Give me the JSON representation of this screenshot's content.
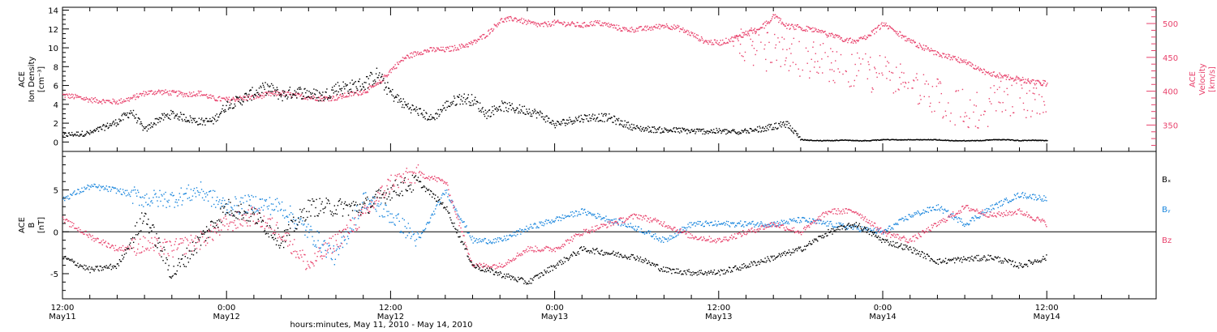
{
  "colors": {
    "density": "#000000",
    "velocity": "#e8426c",
    "bx": "#000000",
    "by": "#1a86dd",
    "bz": "#e8426c"
  },
  "chart_data": [
    {
      "type": "scatter",
      "panel": "top",
      "left_ylabel_lines": [
        "ACE",
        "Ion Density",
        "[cm⁻³]"
      ],
      "right_ylabel_lines": [
        "ACE",
        "Velocity",
        "[km/s]"
      ],
      "left_ylim": [
        -1,
        14.3
      ],
      "left_yticks": [
        0,
        2,
        4,
        6,
        8,
        10,
        12,
        14
      ],
      "right_ylim": [
        311,
        524
      ],
      "right_yticks": [
        350,
        400,
        450,
        500
      ],
      "series": [
        {
          "key": "density",
          "axis": "left",
          "x": [
            0,
            1,
            2,
            3,
            4,
            5,
            6,
            7,
            8,
            9,
            10,
            11,
            12,
            13,
            14,
            15,
            16,
            17,
            18,
            19,
            20,
            21,
            22,
            23,
            24,
            25,
            26,
            27,
            28,
            29,
            30,
            31,
            32,
            33,
            34,
            35,
            36,
            37,
            38,
            39,
            40,
            41,
            42,
            43,
            44,
            45,
            46,
            47,
            48,
            49,
            50,
            51,
            52,
            53,
            54,
            55,
            56,
            57,
            58,
            59,
            60,
            61,
            62,
            63,
            64,
            65,
            66,
            67,
            68,
            69,
            70,
            71,
            72
          ],
          "y": [
            0.8,
            0.9,
            1.0,
            1.6,
            2.2,
            3.3,
            1.3,
            2.5,
            3.0,
            2.6,
            2.2,
            2.3,
            4.0,
            4.5,
            5.3,
            5.8,
            5.0,
            5.4,
            5.2,
            4.9,
            5.8,
            5.9,
            6.2,
            7.2,
            5.2,
            4.0,
            3.3,
            2.5,
            3.9,
            4.7,
            4.5,
            3.0,
            3.9,
            3.6,
            3.4,
            2.9,
            1.9,
            2.3,
            2.6,
            2.7,
            2.6,
            2.0,
            1.5,
            1.4,
            1.3,
            1.3,
            1.2,
            1.2,
            1.2,
            1.1,
            1.3,
            1.4,
            1.7,
            2.0,
            0.3,
            0.2,
            0.2,
            0.25,
            0.2,
            0.2,
            0.3,
            0.3,
            0.3,
            0.3,
            0.3,
            0.2,
            0.2,
            0.2,
            0.3,
            0.3,
            0.2,
            0.25,
            0.2
          ]
        },
        {
          "key": "velocity",
          "axis": "right",
          "x": [
            0,
            1,
            2,
            3,
            4,
            5,
            6,
            7,
            8,
            9,
            10,
            11,
            12,
            13,
            14,
            15,
            16,
            17,
            18,
            19,
            20,
            21,
            22,
            23,
            24,
            25,
            26,
            27,
            28,
            29,
            30,
            31,
            32,
            33,
            34,
            35,
            36,
            37,
            38,
            39,
            40,
            41,
            42,
            43,
            44,
            45,
            46,
            47,
            48,
            49,
            50,
            51,
            52,
            53,
            54,
            55,
            56,
            57,
            58,
            59,
            60,
            61,
            62,
            63,
            64,
            65,
            66,
            67,
            68,
            69,
            70,
            71,
            72
          ],
          "y": [
            395,
            392,
            388,
            386,
            385,
            390,
            398,
            400,
            398,
            396,
            398,
            390,
            388,
            390,
            392,
            396,
            398,
            394,
            392,
            390,
            391,
            396,
            400,
            410,
            432,
            450,
            458,
            462,
            462,
            466,
            472,
            485,
            505,
            508,
            502,
            498,
            502,
            500,
            498,
            502,
            498,
            492,
            492,
            494,
            498,
            494,
            485,
            474,
            472,
            478,
            486,
            492,
            512,
            496,
            495,
            490,
            484,
            478,
            474,
            484,
            500,
            488,
            474,
            465,
            456,
            450,
            444,
            432,
            426,
            422,
            418,
            414,
            412
          ]
        }
      ],
      "extra_velocity_x": [
        49,
        50,
        51,
        52,
        53,
        54,
        55,
        56,
        57,
        58,
        59,
        60,
        61,
        62,
        63,
        64,
        65,
        66,
        67,
        68,
        69,
        70,
        71,
        72
      ],
      "extra_velocity_y": [
        472,
        466,
        462,
        458,
        452,
        448,
        444,
        440,
        436,
        430,
        428,
        424,
        418,
        408,
        398,
        392,
        380,
        376,
        372,
        382,
        392,
        390,
        386,
        384
      ]
    },
    {
      "type": "scatter",
      "panel": "bottom",
      "ylabel_lines": [
        "ACE",
        "B",
        "[nT]"
      ],
      "ylim": [
        -8,
        9.6
      ],
      "yticks": [
        -5,
        0,
        5
      ],
      "zero_line": true,
      "legend": [
        "Bₓ",
        "Bᵧ",
        "Bz"
      ],
      "series": [
        {
          "key": "bx",
          "x": [
            0,
            2,
            4,
            6,
            8,
            10,
            12,
            14,
            16,
            18,
            20,
            22,
            24,
            26,
            28,
            30,
            32,
            34,
            36,
            38,
            40,
            42,
            44,
            46,
            48,
            50,
            52,
            54,
            56,
            58,
            60,
            62,
            64,
            66,
            68,
            70,
            72
          ],
          "y": [
            -3,
            -4.5,
            -4,
            2,
            -5,
            -1,
            3,
            2,
            -1,
            3,
            3,
            3,
            5,
            6,
            3,
            -4,
            -5,
            -6,
            -4,
            -2,
            -2.5,
            -3,
            -4.5,
            -4.8,
            -4.8,
            -4,
            -3,
            -2,
            0,
            1,
            -1,
            -2,
            -3.5,
            -3.2,
            -3,
            -4,
            -3
          ]
        },
        {
          "key": "by",
          "x": [
            0,
            2,
            4,
            6,
            8,
            10,
            12,
            14,
            16,
            18,
            20,
            22,
            24,
            26,
            28,
            30,
            32,
            34,
            36,
            38,
            40,
            42,
            44,
            46,
            48,
            50,
            52,
            54,
            56,
            58,
            60,
            62,
            64,
            66,
            68,
            70,
            72
          ],
          "y": [
            4,
            5.5,
            5,
            4,
            4,
            5,
            3,
            3.5,
            3,
            0,
            -3,
            4,
            2,
            -1,
            5,
            -1,
            -1,
            0.5,
            1.5,
            2.5,
            1.5,
            0.5,
            -1,
            1,
            1,
            1,
            1,
            1.5,
            1,
            0.5,
            0,
            2,
            3,
            1,
            3,
            4.5,
            4
          ]
        },
        {
          "key": "bz",
          "x": [
            0,
            2,
            4,
            6,
            8,
            10,
            12,
            14,
            16,
            18,
            20,
            22,
            24,
            26,
            28,
            30,
            32,
            34,
            36,
            38,
            40,
            42,
            44,
            46,
            48,
            50,
            52,
            54,
            56,
            58,
            60,
            62,
            64,
            66,
            68,
            70,
            72
          ],
          "y": [
            1.5,
            -0.5,
            -2,
            -1.5,
            -2,
            -1,
            1,
            2,
            0,
            -4,
            -1,
            2,
            6,
            7,
            6,
            -4,
            -4,
            -2,
            -2,
            0,
            1,
            2,
            1,
            -0.5,
            -1,
            0,
            1,
            0,
            2.5,
            2.5,
            0,
            -1,
            1,
            3,
            2,
            2.5,
            1
          ]
        }
      ]
    }
  ],
  "x_axis": {
    "xlim": [
      0,
      80
    ],
    "tick_hours": [
      0,
      12,
      24,
      36,
      48,
      60,
      72
    ],
    "tick_labels": [
      {
        "time": "12:00",
        "date": "May11"
      },
      {
        "time": "0:00",
        "date": "May12"
      },
      {
        "time": "12:00",
        "date": "May12"
      },
      {
        "time": "0:00",
        "date": "May13"
      },
      {
        "time": "12:00",
        "date": "May13"
      },
      {
        "time": "0:00",
        "date": "May14"
      },
      {
        "time": "12:00",
        "date": "May14"
      }
    ],
    "xlabel": "hours:minutes, May 11, 2010 - May 14, 2010"
  }
}
